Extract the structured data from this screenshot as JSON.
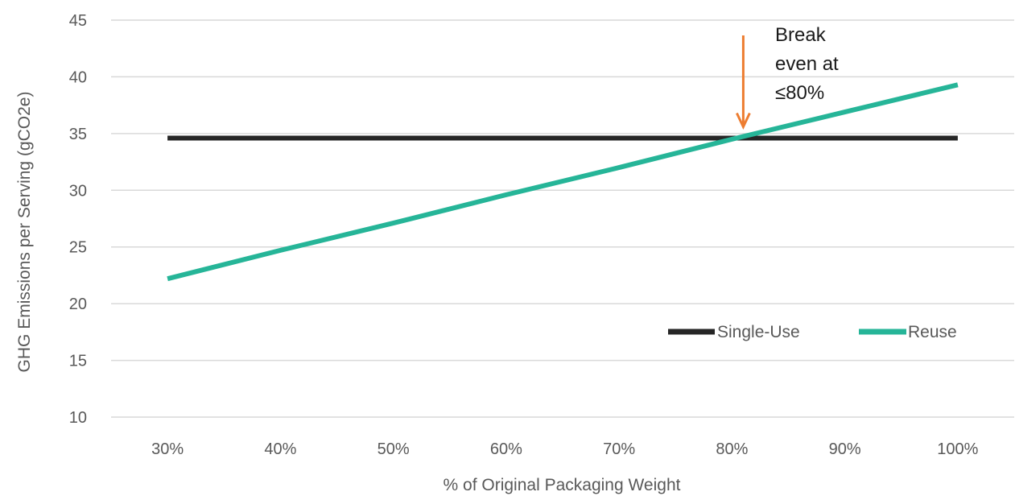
{
  "chart_data": {
    "type": "line",
    "title": "",
    "xlabel": "% of Original Packaging Weight",
    "ylabel": "GHG Emissions per Serving (gCO2e)",
    "x": [
      30,
      40,
      50,
      60,
      70,
      80,
      90,
      100
    ],
    "x_tick_labels": [
      "30%",
      "40%",
      "50%",
      "60%",
      "70%",
      "80%",
      "90%",
      "100%"
    ],
    "xlim": [
      25,
      105
    ],
    "ylim": [
      10,
      45
    ],
    "y_ticks": [
      10,
      15,
      20,
      25,
      30,
      35,
      40,
      45
    ],
    "y_tick_labels": [
      "10",
      "15",
      "20",
      "25",
      "30",
      "35",
      "40",
      "45"
    ],
    "grid": "horizontal",
    "legend_position": "bottom-right",
    "series": [
      {
        "name": "Single-Use",
        "color": "#262626",
        "values": [
          34.6,
          34.6,
          34.6,
          34.6,
          34.6,
          34.6,
          34.6,
          34.6
        ]
      },
      {
        "name": "Reuse",
        "color": "#26b598",
        "values": [
          22.2,
          24.7,
          27.1,
          29.6,
          32.0,
          34.5,
          36.9,
          39.3
        ]
      }
    ],
    "annotations": [
      {
        "lines": [
          "Break",
          "even at",
          "≤80%"
        ],
        "x": 81,
        "y": 34.6,
        "arrow_color": "#ed7d31"
      }
    ]
  }
}
